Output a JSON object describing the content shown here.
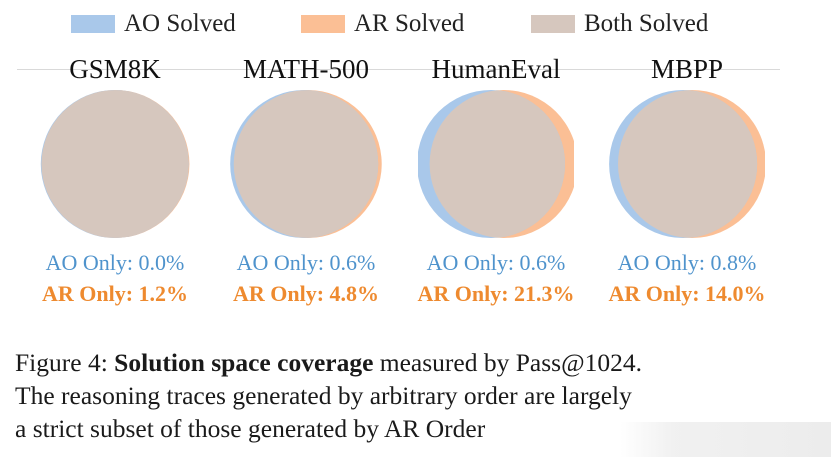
{
  "legend": {
    "items": [
      {
        "label": "AO Solved",
        "color": "#a9c8ea"
      },
      {
        "label": "AR Solved",
        "color": "#fbbf95"
      },
      {
        "label": "Both Solved",
        "color": "#d6c7be"
      }
    ]
  },
  "colors": {
    "ao": "#a9c8ea",
    "ar": "#fbbf95",
    "both": "#d6c7be",
    "ao_text": "#4f93cc",
    "ar_text": "#ee8a2f"
  },
  "panels": [
    {
      "title": "GSM8K",
      "ao_only_label": "AO Only: 0.0%",
      "ar_only_label": "AR Only: 1.2%",
      "ao_only_pct": 0.0,
      "ar_only_pct": 1.2
    },
    {
      "title": "MATH-500",
      "ao_only_label": "AO Only: 0.6%",
      "ar_only_label": "AR Only: 4.8%",
      "ao_only_pct": 0.6,
      "ar_only_pct": 4.8
    },
    {
      "title": "HumanEval",
      "ao_only_label": "AO Only: 0.6%",
      "ar_only_label": "AR Only: 21.3%",
      "ao_only_pct": 0.6,
      "ar_only_pct": 21.3
    },
    {
      "title": "MBPP",
      "ao_only_label": "AO Only: 0.8%",
      "ar_only_label": "AR Only: 14.0%",
      "ao_only_pct": 0.8,
      "ar_only_pct": 14.0
    }
  ],
  "caption": {
    "prefix": "Figure 4: ",
    "bold": "Solution space coverage",
    "line1_rest": " measured by Pass@1024.",
    "line2": "The reasoning traces generated by arbitrary order are largely",
    "line3": "a strict subset of those generated by AR Order"
  },
  "chart_data": {
    "type": "venn",
    "series_names": [
      "AO Solved",
      "AR Solved",
      "Both Solved"
    ],
    "categories": [
      "GSM8K",
      "MATH-500",
      "HumanEval",
      "MBPP"
    ],
    "ao_only_percent": [
      0.0,
      0.6,
      0.6,
      0.8
    ],
    "ar_only_percent": [
      1.2,
      4.8,
      21.3,
      14.0
    ]
  }
}
